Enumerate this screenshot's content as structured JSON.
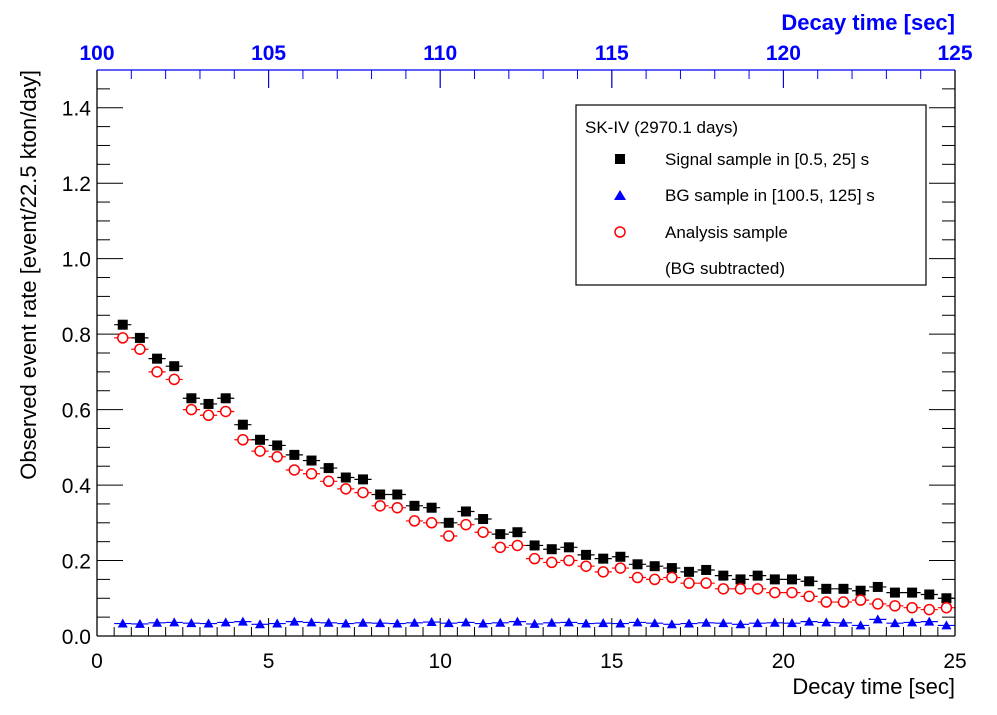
{
  "chart_data": {
    "type": "scatter",
    "xlabel": "Decay time [sec]",
    "ylabel": "Observed event rate [event/22.5 kton/day]",
    "top_xlabel": "Decay time [sec]",
    "xlim": [
      0,
      25
    ],
    "ylim": [
      0,
      1.5
    ],
    "top_xlim": [
      100,
      125
    ],
    "x_ticks": [
      "0",
      "5",
      "10",
      "15",
      "20",
      "25"
    ],
    "y_ticks": [
      "0.0",
      "0.2",
      "0.4",
      "0.6",
      "0.8",
      "1.0",
      "1.2",
      "1.4"
    ],
    "top_ticks": [
      "100",
      "105",
      "110",
      "115",
      "120",
      "125"
    ],
    "legend": {
      "title": "SK-IV (2970.1 days)",
      "position": "top-right",
      "entries": [
        "Signal sample in [0.5, 25] s",
        "BG sample in [100.5, 125] s",
        "Analysis sample",
        "(BG subtracted)"
      ]
    },
    "series": [
      {
        "name": "Signal sample in [0.5, 25] s",
        "marker": "square",
        "color": "#000000",
        "x": [
          0.75,
          1.25,
          1.75,
          2.25,
          2.75,
          3.25,
          3.75,
          4.25,
          4.75,
          5.25,
          5.75,
          6.25,
          6.75,
          7.25,
          7.75,
          8.25,
          8.75,
          9.25,
          9.75,
          10.25,
          10.75,
          11.25,
          11.75,
          12.25,
          12.75,
          13.25,
          13.75,
          14.25,
          14.75,
          15.25,
          15.75,
          16.25,
          16.75,
          17.25,
          17.75,
          18.25,
          18.75,
          19.25,
          19.75,
          20.25,
          20.75,
          21.25,
          21.75,
          22.25,
          22.75,
          23.25,
          23.75,
          24.25,
          24.75
        ],
        "values": [
          0.825,
          0.79,
          0.735,
          0.715,
          0.63,
          0.615,
          0.63,
          0.56,
          0.52,
          0.505,
          0.48,
          0.465,
          0.445,
          0.42,
          0.415,
          0.375,
          0.375,
          0.345,
          0.34,
          0.3,
          0.33,
          0.31,
          0.27,
          0.275,
          0.24,
          0.23,
          0.235,
          0.215,
          0.205,
          0.21,
          0.19,
          0.185,
          0.18,
          0.17,
          0.175,
          0.16,
          0.15,
          0.16,
          0.15,
          0.15,
          0.145,
          0.125,
          0.125,
          0.12,
          0.13,
          0.115,
          0.115,
          0.11,
          0.1
        ]
      },
      {
        "name": "BG sample in [100.5, 125] s",
        "marker": "triangle",
        "color": "#0000ff",
        "x": [
          0.75,
          1.25,
          1.75,
          2.25,
          2.75,
          3.25,
          3.75,
          4.25,
          4.75,
          5.25,
          5.75,
          6.25,
          6.75,
          7.25,
          7.75,
          8.25,
          8.75,
          9.25,
          9.75,
          10.25,
          10.75,
          11.25,
          11.75,
          12.25,
          12.75,
          13.25,
          13.75,
          14.25,
          14.75,
          15.25,
          15.75,
          16.25,
          16.75,
          17.25,
          17.75,
          18.25,
          18.75,
          19.25,
          19.75,
          20.25,
          20.75,
          21.25,
          21.75,
          22.25,
          22.75,
          23.25,
          23.75,
          24.25,
          24.75
        ],
        "values": [
          0.033,
          0.032,
          0.035,
          0.036,
          0.034,
          0.033,
          0.036,
          0.038,
          0.031,
          0.033,
          0.038,
          0.036,
          0.035,
          0.033,
          0.035,
          0.034,
          0.033,
          0.035,
          0.037,
          0.034,
          0.036,
          0.033,
          0.035,
          0.038,
          0.032,
          0.035,
          0.036,
          0.033,
          0.034,
          0.033,
          0.036,
          0.034,
          0.031,
          0.033,
          0.035,
          0.034,
          0.031,
          0.034,
          0.035,
          0.034,
          0.038,
          0.036,
          0.035,
          0.028,
          0.044,
          0.034,
          0.036,
          0.038,
          0.028
        ]
      },
      {
        "name": "Analysis sample",
        "marker": "open-circle",
        "color": "#ff0000",
        "x": [
          0.75,
          1.25,
          1.75,
          2.25,
          2.75,
          3.25,
          3.75,
          4.25,
          4.75,
          5.25,
          5.75,
          6.25,
          6.75,
          7.25,
          7.75,
          8.25,
          8.75,
          9.25,
          9.75,
          10.25,
          10.75,
          11.25,
          11.75,
          12.25,
          12.75,
          13.25,
          13.75,
          14.25,
          14.75,
          15.25,
          15.75,
          16.25,
          16.75,
          17.25,
          17.75,
          18.25,
          18.75,
          19.25,
          19.75,
          20.25,
          20.75,
          21.25,
          21.75,
          22.25,
          22.75,
          23.25,
          23.75,
          24.25,
          24.75
        ],
        "values": [
          0.79,
          0.76,
          0.7,
          0.68,
          0.6,
          0.585,
          0.595,
          0.52,
          0.49,
          0.475,
          0.44,
          0.43,
          0.41,
          0.39,
          0.38,
          0.345,
          0.34,
          0.305,
          0.3,
          0.265,
          0.295,
          0.275,
          0.235,
          0.24,
          0.205,
          0.195,
          0.2,
          0.185,
          0.17,
          0.18,
          0.155,
          0.15,
          0.155,
          0.14,
          0.14,
          0.125,
          0.125,
          0.125,
          0.115,
          0.115,
          0.105,
          0.09,
          0.09,
          0.095,
          0.085,
          0.08,
          0.075,
          0.07,
          0.075
        ]
      }
    ]
  }
}
